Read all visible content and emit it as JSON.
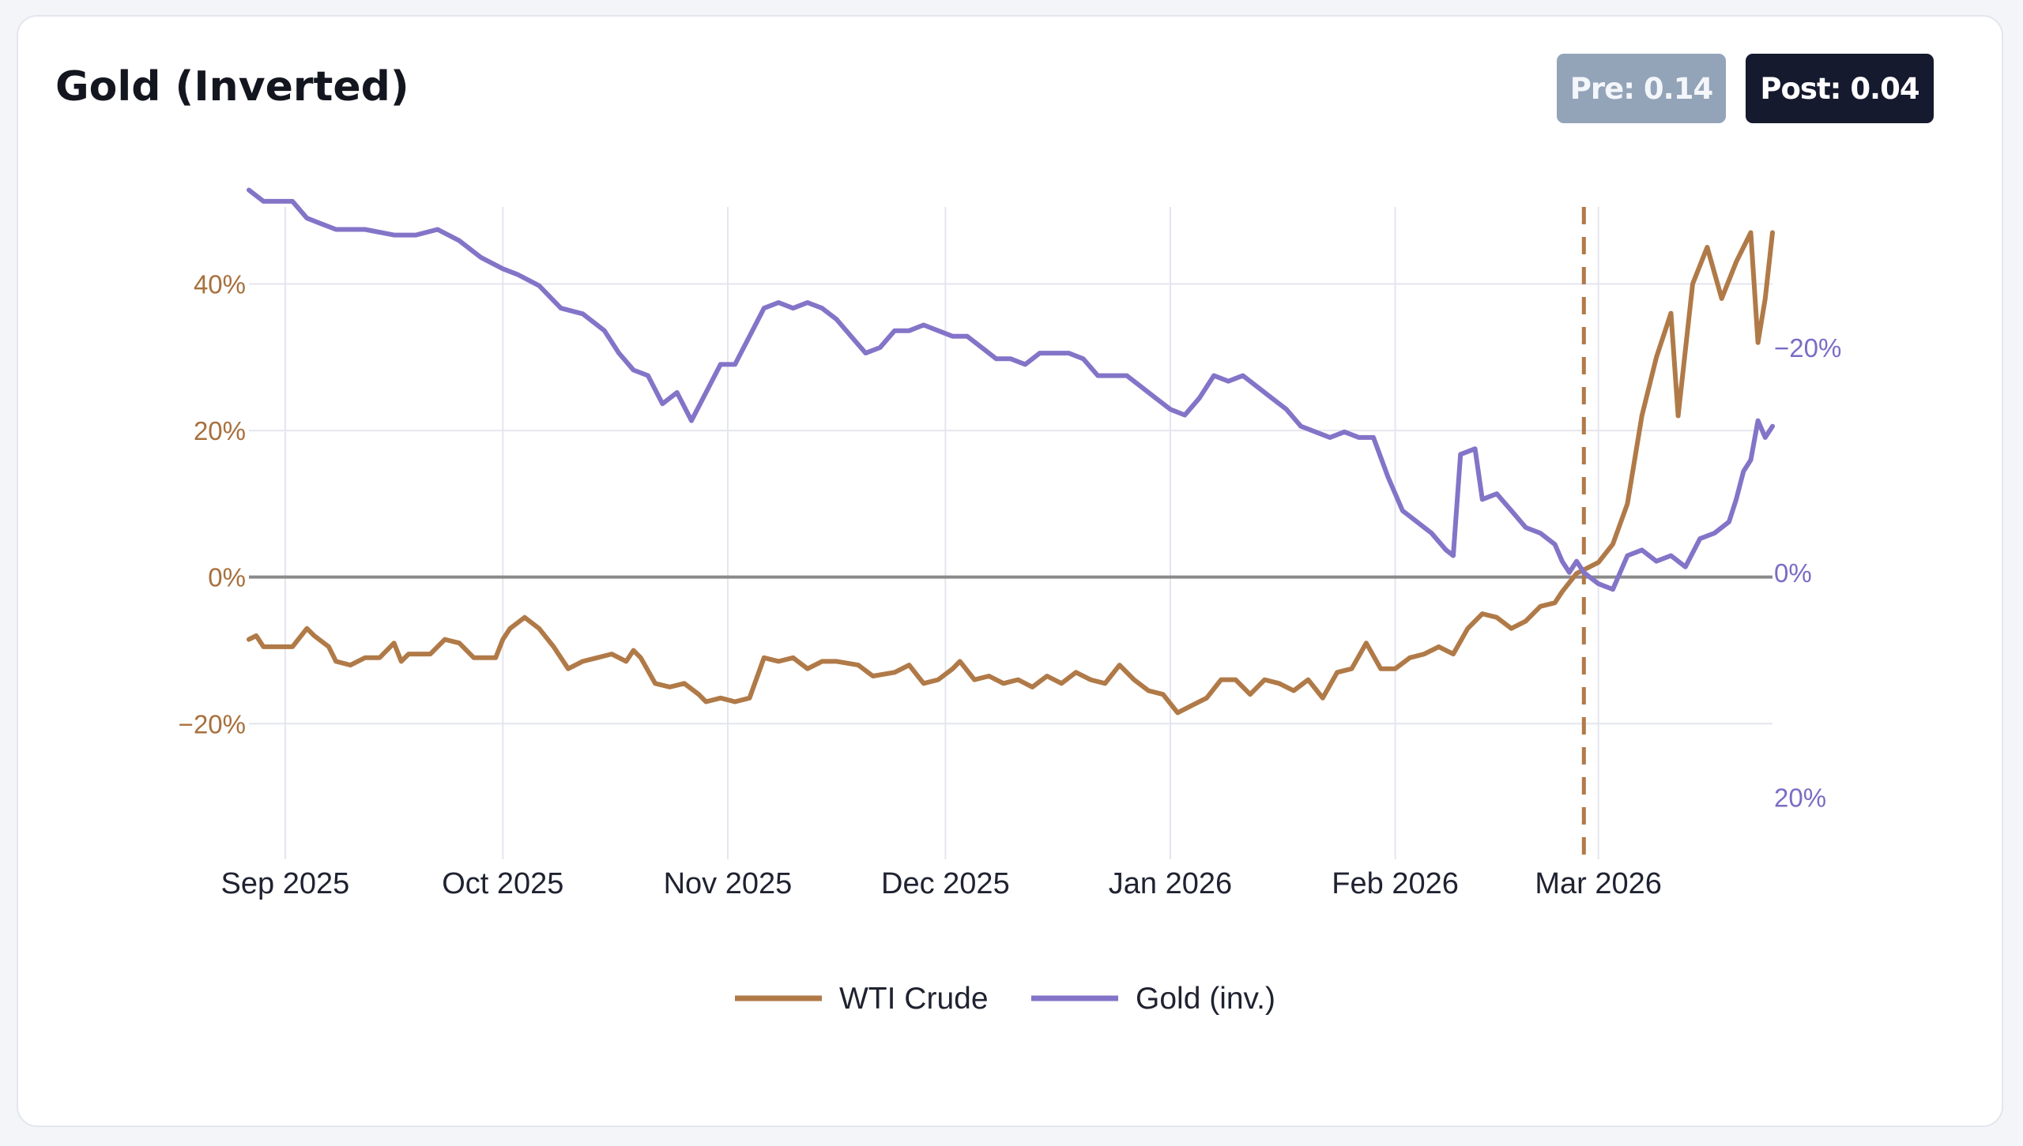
{
  "card": {
    "title": "Gold (Inverted)",
    "badges": {
      "pre": "Pre: 0.14",
      "post": "Post: 0.04"
    }
  },
  "colors": {
    "wti": "#b07a48",
    "gold": "#8474c8",
    "zero_line": "#8a8a8a",
    "grid": "#e4e6ee",
    "event_line": "#b07a48",
    "left_tick": "#a8703d",
    "right_tick": "#7b6cc4",
    "badge_pre_bg": "#93a3b8",
    "badge_post_bg": "#161a2e"
  },
  "chart_data": {
    "type": "line",
    "title": "Gold (Inverted)",
    "x_ticks": [
      "Sep 2025",
      "Oct 2025",
      "Nov 2025",
      "Dec 2025",
      "Jan 2026",
      "Feb 2026",
      "Mar 2026"
    ],
    "x_tick_dates": [
      "2025-09-01",
      "2025-10-01",
      "2025-11-01",
      "2025-12-01",
      "2026-01-01",
      "2026-02-01",
      "2026-03-01"
    ],
    "x_range": [
      "2025-08-27",
      "2026-03-25"
    ],
    "y_left": {
      "ticks": [
        "40%",
        "20%",
        "0%",
        "−20%"
      ],
      "tick_values": [
        40,
        20,
        0,
        -20
      ],
      "range": [
        -38.5,
        50.5
      ]
    },
    "y_right": {
      "inverted": true,
      "ticks": [
        "−20%",
        "0%",
        "20%"
      ],
      "tick_values": [
        -20,
        0,
        20
      ],
      "range": [
        -32.5,
        25.5
      ]
    },
    "event_marker": {
      "date": "2026-02-27",
      "style": "dashed"
    },
    "grid": true,
    "legend_position": "bottom",
    "series": [
      {
        "name": "WTI Crude",
        "axis": "left",
        "color": "#b07a48",
        "points": [
          [
            "2025-08-27",
            -8.5
          ],
          [
            "2025-08-28",
            -8.0
          ],
          [
            "2025-08-29",
            -9.5
          ],
          [
            "2025-09-02",
            -9.5
          ],
          [
            "2025-09-04",
            -7.0
          ],
          [
            "2025-09-05",
            -8.0
          ],
          [
            "2025-09-07",
            -9.5
          ],
          [
            "2025-09-08",
            -11.5
          ],
          [
            "2025-09-10",
            -12.0
          ],
          [
            "2025-09-12",
            -11.0
          ],
          [
            "2025-09-14",
            -11.0
          ],
          [
            "2025-09-16",
            -9.0
          ],
          [
            "2025-09-17",
            -11.5
          ],
          [
            "2025-09-18",
            -10.5
          ],
          [
            "2025-09-21",
            -10.5
          ],
          [
            "2025-09-23",
            -8.5
          ],
          [
            "2025-09-25",
            -9.0
          ],
          [
            "2025-09-27",
            -11.0
          ],
          [
            "2025-09-30",
            -11.0
          ],
          [
            "2025-10-01",
            -8.5
          ],
          [
            "2025-10-02",
            -7.0
          ],
          [
            "2025-10-04",
            -5.5
          ],
          [
            "2025-10-06",
            -7.0
          ],
          [
            "2025-10-08",
            -9.5
          ],
          [
            "2025-10-10",
            -12.5
          ],
          [
            "2025-10-12",
            -11.5
          ],
          [
            "2025-10-14",
            -11.0
          ],
          [
            "2025-10-16",
            -10.5
          ],
          [
            "2025-10-18",
            -11.5
          ],
          [
            "2025-10-19",
            -10.0
          ],
          [
            "2025-10-20",
            -11.0
          ],
          [
            "2025-10-22",
            -14.5
          ],
          [
            "2025-10-24",
            -15.0
          ],
          [
            "2025-10-26",
            -14.5
          ],
          [
            "2025-10-28",
            -16.0
          ],
          [
            "2025-10-29",
            -17.0
          ],
          [
            "2025-10-31",
            -16.5
          ],
          [
            "2025-11-02",
            -17.0
          ],
          [
            "2025-11-04",
            -16.5
          ],
          [
            "2025-11-06",
            -11.0
          ],
          [
            "2025-11-08",
            -11.5
          ],
          [
            "2025-11-10",
            -11.0
          ],
          [
            "2025-11-12",
            -12.5
          ],
          [
            "2025-11-14",
            -11.5
          ],
          [
            "2025-11-16",
            -11.5
          ],
          [
            "2025-11-19",
            -12.0
          ],
          [
            "2025-11-21",
            -13.5
          ],
          [
            "2025-11-24",
            -13.0
          ],
          [
            "2025-11-26",
            -12.0
          ],
          [
            "2025-11-28",
            -14.5
          ],
          [
            "2025-11-30",
            -14.0
          ],
          [
            "2025-12-02",
            -12.5
          ],
          [
            "2025-12-03",
            -11.5
          ],
          [
            "2025-12-05",
            -14.0
          ],
          [
            "2025-12-07",
            -13.5
          ],
          [
            "2025-12-09",
            -14.5
          ],
          [
            "2025-12-11",
            -14.0
          ],
          [
            "2025-12-13",
            -15.0
          ],
          [
            "2025-12-15",
            -13.5
          ],
          [
            "2025-12-17",
            -14.5
          ],
          [
            "2025-12-19",
            -13.0
          ],
          [
            "2025-12-21",
            -14.0
          ],
          [
            "2025-12-23",
            -14.5
          ],
          [
            "2025-12-25",
            -12.0
          ],
          [
            "2025-12-27",
            -14.0
          ],
          [
            "2025-12-29",
            -15.5
          ],
          [
            "2025-12-31",
            -16.0
          ],
          [
            "2026-01-02",
            -18.5
          ],
          [
            "2026-01-04",
            -17.5
          ],
          [
            "2026-01-06",
            -16.5
          ],
          [
            "2026-01-08",
            -14.0
          ],
          [
            "2026-01-10",
            -14.0
          ],
          [
            "2026-01-12",
            -16.0
          ],
          [
            "2026-01-14",
            -14.0
          ],
          [
            "2026-01-16",
            -14.5
          ],
          [
            "2026-01-18",
            -15.5
          ],
          [
            "2026-01-20",
            -14.0
          ],
          [
            "2026-01-22",
            -16.5
          ],
          [
            "2026-01-24",
            -13.0
          ],
          [
            "2026-01-26",
            -12.5
          ],
          [
            "2026-01-28",
            -9.0
          ],
          [
            "2026-01-30",
            -12.5
          ],
          [
            "2026-02-01",
            -12.5
          ],
          [
            "2026-02-03",
            -11.0
          ],
          [
            "2026-02-05",
            -10.5
          ],
          [
            "2026-02-07",
            -9.5
          ],
          [
            "2026-02-09",
            -10.5
          ],
          [
            "2026-02-11",
            -7.0
          ],
          [
            "2026-02-13",
            -5.0
          ],
          [
            "2026-02-15",
            -5.5
          ],
          [
            "2026-02-17",
            -7.0
          ],
          [
            "2026-02-19",
            -6.0
          ],
          [
            "2026-02-21",
            -4.0
          ],
          [
            "2026-02-23",
            -3.5
          ],
          [
            "2026-02-24",
            -2.0
          ],
          [
            "2026-02-26",
            0.5
          ],
          [
            "2026-02-27",
            1.0
          ],
          [
            "2026-03-01",
            2.0
          ],
          [
            "2026-03-03",
            4.5
          ],
          [
            "2026-03-05",
            10.0
          ],
          [
            "2026-03-07",
            22.0
          ],
          [
            "2026-03-09",
            30.0
          ],
          [
            "2026-03-11",
            36.0
          ],
          [
            "2026-03-12",
            22.0
          ],
          [
            "2026-03-14",
            40.0
          ],
          [
            "2026-03-16",
            45.0
          ],
          [
            "2026-03-18",
            38.0
          ],
          [
            "2026-03-20",
            43.0
          ],
          [
            "2026-03-22",
            47.0
          ],
          [
            "2026-03-23",
            32.0
          ],
          [
            "2026-03-24",
            38.0
          ],
          [
            "2026-03-25",
            47.0
          ]
        ]
      },
      {
        "name": "Gold (inv.)",
        "axis": "right",
        "color": "#8474c8",
        "points": [
          [
            "2025-08-27",
            -34.0
          ],
          [
            "2025-08-29",
            -33.0
          ],
          [
            "2025-09-02",
            -33.0
          ],
          [
            "2025-09-04",
            -31.5
          ],
          [
            "2025-09-06",
            -31.0
          ],
          [
            "2025-09-08",
            -30.5
          ],
          [
            "2025-09-12",
            -30.5
          ],
          [
            "2025-09-16",
            -30.0
          ],
          [
            "2025-09-19",
            -30.0
          ],
          [
            "2025-09-22",
            -30.5
          ],
          [
            "2025-09-25",
            -29.5
          ],
          [
            "2025-09-28",
            -28.0
          ],
          [
            "2025-10-01",
            -27.0
          ],
          [
            "2025-10-03",
            -26.5
          ],
          [
            "2025-10-06",
            -25.5
          ],
          [
            "2025-10-09",
            -23.5
          ],
          [
            "2025-10-12",
            -23.0
          ],
          [
            "2025-10-15",
            -21.5
          ],
          [
            "2025-10-17",
            -19.5
          ],
          [
            "2025-10-19",
            -18.0
          ],
          [
            "2025-10-21",
            -17.5
          ],
          [
            "2025-10-23",
            -15.0
          ],
          [
            "2025-10-25",
            -16.0
          ],
          [
            "2025-10-27",
            -13.5
          ],
          [
            "2025-10-29",
            -16.0
          ],
          [
            "2025-10-31",
            -18.5
          ],
          [
            "2025-11-02",
            -18.5
          ],
          [
            "2025-11-04",
            -21.0
          ],
          [
            "2025-11-06",
            -23.5
          ],
          [
            "2025-11-08",
            -24.0
          ],
          [
            "2025-11-10",
            -23.5
          ],
          [
            "2025-11-12",
            -24.0
          ],
          [
            "2025-11-14",
            -23.5
          ],
          [
            "2025-11-16",
            -22.5
          ],
          [
            "2025-11-18",
            -21.0
          ],
          [
            "2025-11-20",
            -19.5
          ],
          [
            "2025-11-22",
            -20.0
          ],
          [
            "2025-11-24",
            -21.5
          ],
          [
            "2025-11-26",
            -21.5
          ],
          [
            "2025-11-28",
            -22.0
          ],
          [
            "2025-11-30",
            -21.5
          ],
          [
            "2025-12-02",
            -21.0
          ],
          [
            "2025-12-04",
            -21.0
          ],
          [
            "2025-12-06",
            -20.0
          ],
          [
            "2025-12-08",
            -19.0
          ],
          [
            "2025-12-10",
            -19.0
          ],
          [
            "2025-12-12",
            -18.5
          ],
          [
            "2025-12-14",
            -19.5
          ],
          [
            "2025-12-16",
            -19.5
          ],
          [
            "2025-12-18",
            -19.5
          ],
          [
            "2025-12-20",
            -19.0
          ],
          [
            "2025-12-22",
            -17.5
          ],
          [
            "2025-12-26",
            -17.5
          ],
          [
            "2025-12-28",
            -16.5
          ],
          [
            "2025-12-30",
            -15.5
          ],
          [
            "2026-01-01",
            -14.5
          ],
          [
            "2026-01-03",
            -14.0
          ],
          [
            "2026-01-05",
            -15.5
          ],
          [
            "2026-01-07",
            -17.5
          ],
          [
            "2026-01-09",
            -17.0
          ],
          [
            "2026-01-11",
            -17.5
          ],
          [
            "2026-01-13",
            -16.5
          ],
          [
            "2026-01-15",
            -15.5
          ],
          [
            "2026-01-17",
            -14.5
          ],
          [
            "2026-01-19",
            -13.0
          ],
          [
            "2026-01-21",
            -12.5
          ],
          [
            "2026-01-23",
            -12.0
          ],
          [
            "2026-01-25",
            -12.5
          ],
          [
            "2026-01-27",
            -12.0
          ],
          [
            "2026-01-29",
            -12.0
          ],
          [
            "2026-01-31",
            -8.5
          ],
          [
            "2026-02-02",
            -5.5
          ],
          [
            "2026-02-04",
            -4.5
          ],
          [
            "2026-02-06",
            -3.5
          ],
          [
            "2026-02-08",
            -2.0
          ],
          [
            "2026-02-09",
            -1.5
          ],
          [
            "2026-02-10",
            -10.5
          ],
          [
            "2026-02-12",
            -11.0
          ],
          [
            "2026-02-13",
            -6.5
          ],
          [
            "2026-02-15",
            -7.0
          ],
          [
            "2026-02-17",
            -5.5
          ],
          [
            "2026-02-19",
            -4.0
          ],
          [
            "2026-02-21",
            -3.5
          ],
          [
            "2026-02-23",
            -2.5
          ],
          [
            "2026-02-24",
            -1.0
          ],
          [
            "2026-02-25",
            0.0
          ],
          [
            "2026-02-26",
            -1.0
          ],
          [
            "2026-02-27",
            0.0
          ],
          [
            "2026-02-28",
            0.5
          ],
          [
            "2026-03-01",
            1.0
          ],
          [
            "2026-03-03",
            1.5
          ],
          [
            "2026-03-05",
            -1.5
          ],
          [
            "2026-03-07",
            -2.0
          ],
          [
            "2026-03-09",
            -1.0
          ],
          [
            "2026-03-11",
            -1.5
          ],
          [
            "2026-03-13",
            -0.5
          ],
          [
            "2026-03-15",
            -3.0
          ],
          [
            "2026-03-17",
            -3.5
          ],
          [
            "2026-03-19",
            -4.5
          ],
          [
            "2026-03-20",
            -6.5
          ],
          [
            "2026-03-21",
            -9.0
          ],
          [
            "2026-03-22",
            -10.0
          ],
          [
            "2026-03-23",
            -13.5
          ],
          [
            "2026-03-24",
            -12.0
          ],
          [
            "2026-03-25",
            -13.0
          ]
        ]
      }
    ]
  }
}
